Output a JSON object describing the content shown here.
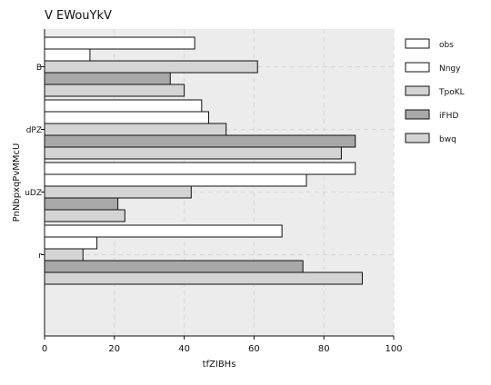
{
  "chart_data": {
    "type": "bar",
    "orientation": "horizontal",
    "title": "V EWouYkV",
    "xlabel": "tfZIBHs",
    "ylabel": "PnNbpxqPvMMcU",
    "categories": [
      "B",
      "dPZ",
      "uDZ",
      "r"
    ],
    "xlim": [
      0,
      100
    ],
    "xticks": [
      0,
      20,
      40,
      60,
      80,
      100
    ],
    "grid": true,
    "legend_position": "right",
    "series": [
      {
        "name": "obs",
        "color": "#ffffff",
        "values": [
          43,
          45,
          89,
          68
        ]
      },
      {
        "name": "Nngy",
        "color": "#ffffff",
        "values": [
          13,
          47,
          75,
          15
        ]
      },
      {
        "name": "TpoKL",
        "color": "#d4d4d4",
        "values": [
          61,
          52,
          42,
          11
        ]
      },
      {
        "name": "iFHD",
        "color": "#a8a8a8",
        "values": [
          36,
          89,
          21,
          74
        ]
      },
      {
        "name": "bwq",
        "color": "#d4d4d4",
        "values": [
          40,
          85,
          23,
          91
        ]
      }
    ]
  }
}
